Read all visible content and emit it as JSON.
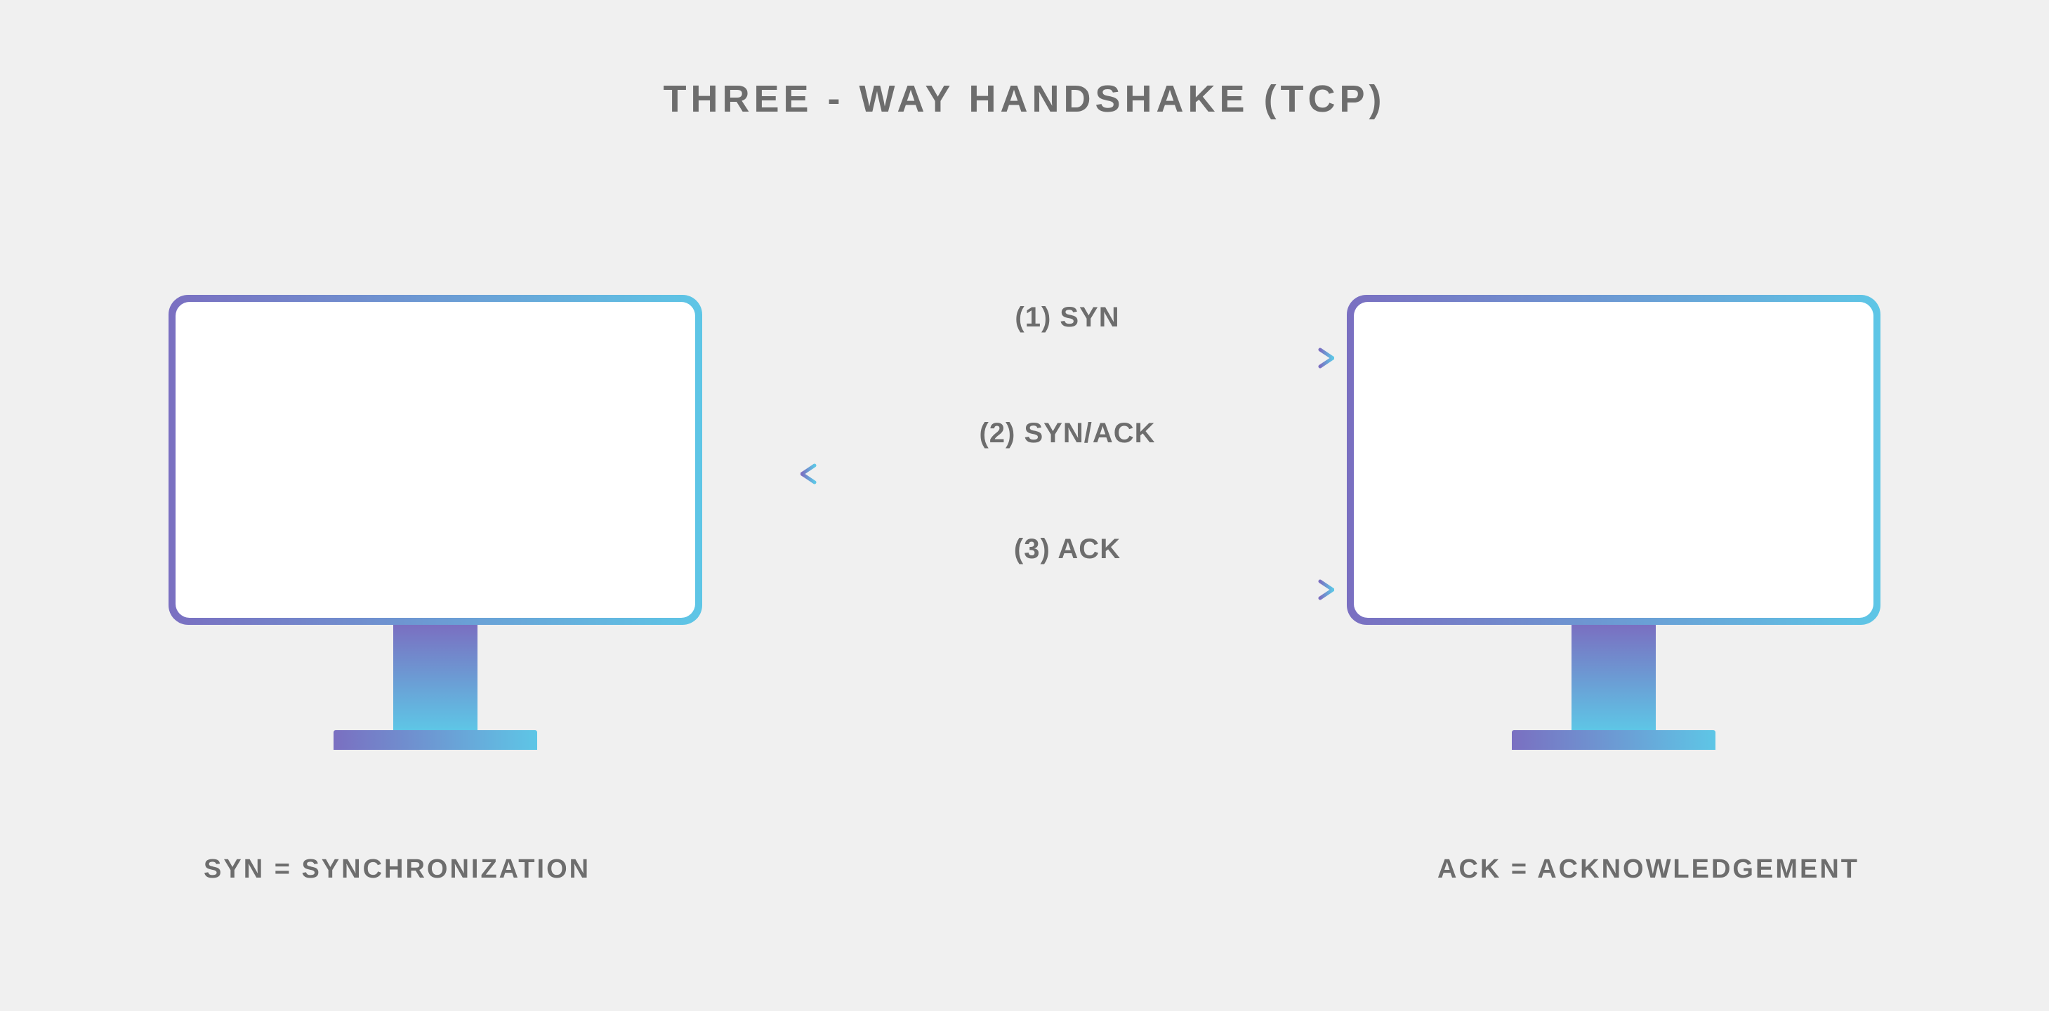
{
  "type": "network-diagram",
  "title": "THREE - WAY HANDSHAKE (TCP)",
  "background_color": "#f0f0f0",
  "text_color": "#6d6d6d",
  "title_fontsize": 54,
  "label_fontsize": 40,
  "caption_fontsize": 38,
  "gradient": {
    "start": "#7a6fc1",
    "end": "#5ec6e6"
  },
  "monitors": {
    "screen_fill": "#ffffff",
    "border_width": 10,
    "border_radius": 28
  },
  "steps": [
    {
      "label": "(1) SYN",
      "direction": "right"
    },
    {
      "label": "(2) SYN/ACK",
      "direction": "left"
    },
    {
      "label": "(3) ACK",
      "direction": "right"
    }
  ],
  "captions": {
    "left": "SYN = SYNCHRONIZATION",
    "right": "ACK = ACKNOWLEDGEMENT"
  },
  "arrow": {
    "length": 760,
    "stroke_width": 5,
    "head_size": 20
  }
}
